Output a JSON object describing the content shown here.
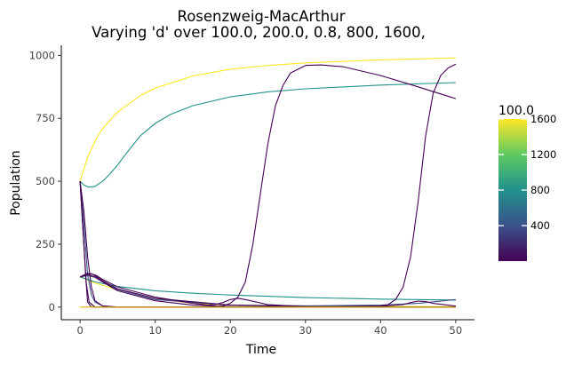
{
  "chart_data": {
    "type": "line",
    "title": "Rosenzweig-MacArthur",
    "subtitle": "Varying 'd' over 100.0, 200.0, 0.8, 800, 1600,",
    "xlabel": "Time",
    "ylabel": "Population",
    "xlim": [
      -2.5,
      52.5
    ],
    "ylim": [
      -50,
      1040
    ],
    "x_ticks": [
      0,
      10,
      20,
      30,
      40,
      50
    ],
    "y_ticks": [
      0,
      250,
      500,
      750,
      1000
    ],
    "grid": false,
    "legend": {
      "title": "100.0",
      "placement": "right",
      "type": "colorbar",
      "range": [
        0.8,
        1600
      ],
      "ticks": [
        400,
        800,
        1200,
        1600
      ],
      "colors": [
        "#440154",
        "#3b528b",
        "#21918c",
        "#5ec962",
        "#fde725"
      ]
    },
    "series": [
      {
        "color": "#fde725",
        "x": [
          0,
          1,
          2,
          3,
          5,
          8,
          10,
          15,
          20,
          25,
          30,
          40,
          50
        ],
        "y": [
          500,
          595,
          660,
          710,
          775,
          840,
          870,
          918,
          945,
          960,
          970,
          982,
          990
        ]
      },
      {
        "color": "#fde725",
        "x": [
          0,
          2,
          5,
          10,
          15,
          20,
          30,
          40,
          50
        ],
        "y": [
          120,
          95,
          70,
          35,
          15,
          8,
          5,
          3,
          2
        ]
      },
      {
        "color": "#21918c",
        "x": [
          0,
          0.5,
          1,
          1.5,
          2,
          3,
          4,
          5,
          6,
          8,
          10,
          12,
          15,
          20,
          25,
          30,
          40,
          50
        ],
        "y": [
          500,
          485,
          478,
          477,
          480,
          500,
          530,
          565,
          605,
          680,
          730,
          765,
          800,
          835,
          855,
          867,
          882,
          892
        ]
      },
      {
        "color": "#21918c",
        "x": [
          0,
          1,
          2,
          5,
          10,
          15,
          20,
          30,
          40,
          50
        ],
        "y": [
          120,
          110,
          100,
          82,
          65,
          55,
          48,
          38,
          32,
          28
        ]
      },
      {
        "color": "#3b528b",
        "x": [
          0,
          0.3,
          0.7,
          1,
          1.5,
          2,
          3,
          5,
          10,
          20,
          30,
          40,
          50
        ],
        "y": [
          500,
          400,
          250,
          130,
          50,
          20,
          5,
          0,
          0,
          0,
          0,
          0,
          0
        ]
      },
      {
        "color": "#3b528b",
        "x": [
          0,
          1,
          2,
          3,
          5,
          10,
          20,
          30,
          40,
          45,
          50
        ],
        "y": [
          120,
          125,
          118,
          100,
          70,
          30,
          8,
          5,
          8,
          15,
          30
        ]
      },
      {
        "color": "#440154",
        "x": [
          0,
          0.4,
          0.8,
          1.2,
          2,
          5,
          10,
          15,
          17,
          19,
          20,
          21,
          22,
          23,
          24,
          25,
          26,
          27,
          28,
          30,
          32,
          35,
          40,
          45,
          50
        ],
        "y": [
          500,
          300,
          100,
          20,
          0,
          0,
          0,
          0,
          0,
          5,
          15,
          40,
          100,
          250,
          450,
          650,
          800,
          880,
          930,
          960,
          962,
          955,
          920,
          875,
          828
        ]
      },
      {
        "color": "#440154",
        "x": [
          0,
          1,
          2,
          3,
          5,
          10,
          15,
          17,
          18,
          19,
          20,
          21,
          22,
          25,
          30,
          40,
          50
        ],
        "y": [
          120,
          135,
          128,
          110,
          80,
          40,
          15,
          8,
          10,
          18,
          30,
          35,
          30,
          10,
          2,
          0,
          0
        ]
      },
      {
        "color": "#440154",
        "x": [
          0,
          0.5,
          1,
          1.5,
          2,
          3,
          5,
          10,
          20,
          30,
          40,
          41,
          42,
          43,
          44,
          45,
          46,
          47,
          48,
          49,
          50
        ],
        "y": [
          500,
          380,
          200,
          80,
          25,
          5,
          0,
          0,
          0,
          0,
          5,
          10,
          30,
          80,
          200,
          420,
          680,
          850,
          920,
          950,
          965
        ]
      },
      {
        "color": "#440154",
        "x": [
          0,
          1,
          1.5,
          2,
          3,
          5,
          10,
          20,
          30,
          35,
          40,
          43,
          44,
          45,
          46,
          47,
          50
        ],
        "y": [
          120,
          130,
          133,
          125,
          105,
          72,
          35,
          8,
          2,
          1,
          3,
          10,
          18,
          24,
          22,
          15,
          4
        ]
      },
      {
        "color": "#440154",
        "x": [
          0,
          0.2,
          0.5,
          0.8,
          1,
          1.5,
          2,
          5,
          10,
          20,
          30,
          40,
          50
        ],
        "y": [
          500,
          400,
          250,
          100,
          20,
          0,
          0,
          0,
          0,
          0,
          0,
          0,
          0
        ]
      },
      {
        "color": "#440154",
        "x": [
          0,
          1,
          2,
          3,
          5,
          10,
          15,
          20,
          30,
          40,
          50
        ],
        "y": [
          120,
          130,
          120,
          100,
          65,
          25,
          8,
          2,
          0,
          0,
          0
        ]
      },
      {
        "color": "#e0b000",
        "x": [
          0,
          2,
          5,
          10,
          20,
          30,
          40,
          50
        ],
        "y": [
          0,
          0,
          0,
          0,
          0,
          0,
          0,
          0
        ]
      }
    ]
  }
}
